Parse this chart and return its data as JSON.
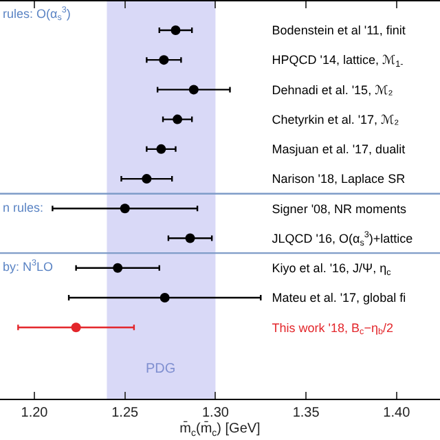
{
  "chart_data": {
    "type": "scatter",
    "orientation": "horizontal",
    "xlabel": "m̄$_{c}$(m̄$_{c}$) [GeV]",
    "categories": [
      "Bodenstein et al '11, finit",
      "HPQCD '14, lattice, ℳ$_{1-}$",
      "Dehnadi et al. '15, ℳ₂",
      "Chetyrkin et al. '17, ℳ₂",
      "Masjuan et al. '17, dualit",
      "Narison '18, Laplace SR",
      "Signer '08, NR moments",
      "JLQCD '16, O(α$_{s}$$^{3}$)+lattice",
      "Kiyo et al. '16, J/Ψ, η$_{c}$",
      "Mateu et al. '17, global fi",
      "This work '18, B$_{c}$−η$_{b}$/2"
    ],
    "values": [
      1.278,
      1.2715,
      1.288,
      1.279,
      1.27,
      1.262,
      1.25,
      1.286,
      1.246,
      1.272,
      1.223
    ],
    "errors": [
      0.009,
      0.0095,
      0.02,
      0.008,
      0.008,
      0.014,
      0.04,
      0.012,
      0.023,
      0.053,
      0.032
    ],
    "colors": [
      "#000000",
      "#000000",
      "#000000",
      "#000000",
      "#000000",
      "#000000",
      "#000000",
      "#000000",
      "#000000",
      "#000000",
      "#e3262b"
    ],
    "marker": "circle",
    "xlim": [
      1.181,
      1.424
    ],
    "xticks": [
      {
        "value": 1.2,
        "label": "1.20"
      },
      1.25,
      {
        "value": 1.3,
        "label": "1.30"
      },
      1.35,
      {
        "value": 1.4,
        "label": "1.40"
      }
    ],
    "bands": [
      {
        "axis": "x",
        "from": 1.24,
        "to": 1.3,
        "label": "PDG",
        "color": "#d9d9f7"
      }
    ],
    "annotations": [
      "rules: O(α$_{s}$$^{3}$)",
      "n rules:",
      "by: N$^{3}$LO"
    ],
    "grid": false
  }
}
